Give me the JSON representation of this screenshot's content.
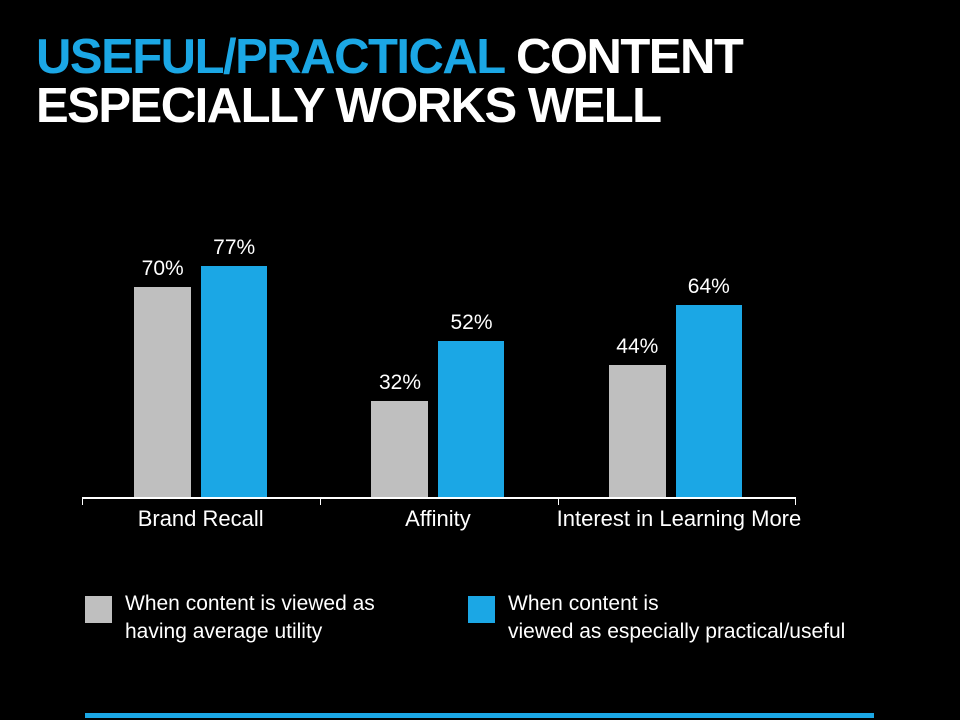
{
  "slide": {
    "title_highlight": "USEFUL/PRACTICAL",
    "title_rest": " CONTENT",
    "title_line2": "ESPECIALLY WORKS WELL"
  },
  "colors": {
    "background": "#000000",
    "text": "#FFFFFF",
    "accent": "#1BA7E5",
    "gray": "#BFBFBF"
  },
  "chart_data": {
    "type": "bar",
    "title": "USEFUL/PRACTICAL CONTENT ESPECIALLY WORKS WELL",
    "categories": [
      "Brand Recall",
      "Affinity",
      "Interest in Learning More"
    ],
    "series": [
      {
        "name": "When content is viewed as having average utility",
        "color": "#BFBFBF",
        "values": [
          70,
          32,
          44
        ]
      },
      {
        "name": "When content is viewed as especially practical/useful",
        "color": "#1BA7E5",
        "values": [
          77,
          52,
          64
        ]
      }
    ],
    "value_suffix": "%",
    "xlabel": "",
    "ylabel": "",
    "ylim": [
      0,
      80
    ],
    "grid": false,
    "legend_position": "bottom"
  },
  "legend": {
    "items": [
      {
        "line1": "When content is viewed as",
        "line2": "having average utility",
        "color": "#BFBFBF"
      },
      {
        "line1": "When content is",
        "line2": "viewed as especially practical/useful",
        "color": "#1BA7E5"
      }
    ]
  }
}
